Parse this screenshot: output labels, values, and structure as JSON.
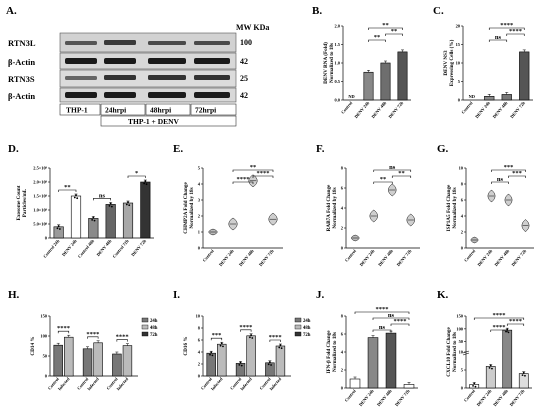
{
  "panel_letters": [
    "A.",
    "B.",
    "C.",
    "D.",
    "E.",
    "F.",
    "G.",
    "H.",
    "I.",
    "J.",
    "K."
  ],
  "western": {
    "mw_header": "MW KDa",
    "blots": [
      {
        "label": "RTN3L",
        "mw": "100"
      },
      {
        "label": "β-Actin",
        "mw": "42"
      },
      {
        "label": "RTN3S",
        "mw": "25"
      },
      {
        "label": "β-Actin",
        "mw": "42"
      }
    ],
    "lanes": [
      "THP-1",
      "24hrpi",
      "48hrpi",
      "72hrpi"
    ],
    "group_label": "THP-1 + DENV"
  },
  "chart_data": [
    {
      "id": "B",
      "type": "bar",
      "ylabel": "DENV RNA (Fold)\nNormalized to 18s",
      "categories": [
        "Control",
        "DENV 24h",
        "DENV 48h",
        "DENV 72h"
      ],
      "values": [
        0,
        0.75,
        1.0,
        1.3
      ],
      "ylim": [
        0,
        2.0
      ],
      "yticks": [
        "0.0",
        "0.5",
        "1.0",
        "1.5",
        "2.0"
      ],
      "annotations": {
        "nd": "ND"
      },
      "sig": [
        {
          "a": 1,
          "b": 2,
          "t": "**"
        },
        {
          "a": 2,
          "b": 3,
          "t": "**"
        },
        {
          "a": 1,
          "b": 3,
          "t": "**"
        }
      ]
    },
    {
      "id": "C",
      "type": "bar",
      "ylabel": "DENV NS3\nExpressing Cells (%)",
      "categories": [
        "Control",
        "DENV 24h",
        "DENV 48h",
        "DENV 72h"
      ],
      "values": [
        0,
        1.0,
        1.5,
        13
      ],
      "ylim": [
        0,
        20
      ],
      "yticks": [
        "0",
        "5",
        "10",
        "15",
        "20"
      ],
      "annotations": {
        "nd": "ND"
      },
      "sig": [
        {
          "a": 1,
          "b": 2,
          "t": "ns"
        },
        {
          "a": 2,
          "b": 3,
          "t": "****"
        },
        {
          "a": 1,
          "b": 3,
          "t": "****"
        }
      ]
    },
    {
      "id": "D",
      "type": "bar",
      "ylabel": "Exosome Count\nParticles/mL",
      "categories": [
        "Control 24h",
        "DENV 24h",
        "Control 48h",
        "DENV 48h",
        "Control 72h",
        "DENV 72h"
      ],
      "values": [
        0.4,
        1.5,
        0.7,
        1.2,
        1.25,
        2.0
      ],
      "ylim": [
        0,
        2.5
      ],
      "yticks": [
        "0",
        "5.0×10⁸",
        "1.0×10⁹",
        "1.5×10⁹",
        "2.0×10⁹",
        "2.5×10⁹"
      ],
      "sig": [
        {
          "a": 0,
          "b": 1,
          "t": "**"
        },
        {
          "a": 2,
          "b": 3,
          "t": "ns"
        },
        {
          "a": 4,
          "b": 5,
          "t": "*"
        }
      ]
    },
    {
      "id": "E",
      "type": "violin",
      "ylabel": "CHMP2A Fold Change\nNormalized by 18s",
      "categories": [
        "Control",
        "DENV 24h",
        "DENV 48h",
        "DENV 72h"
      ],
      "values": [
        1.0,
        1.5,
        4.2,
        1.8
      ],
      "ylim": [
        0,
        5
      ],
      "yticks": [
        "0",
        "1",
        "2",
        "3",
        "4",
        "5"
      ],
      "sig": [
        {
          "a": 1,
          "b": 2,
          "t": "****"
        },
        {
          "a": 2,
          "b": 3,
          "t": "****"
        },
        {
          "a": 1,
          "b": 3,
          "t": "**"
        }
      ]
    },
    {
      "id": "F",
      "type": "violin",
      "ylabel": "RAB7A Fold Change\nNormalized by 18s",
      "categories": [
        "Control",
        "DENV 24h",
        "DENV 48h",
        "DENV 72h"
      ],
      "values": [
        1.0,
        3.2,
        5.8,
        2.8
      ],
      "ylim": [
        0,
        8
      ],
      "yticks": [
        "0",
        "2",
        "4",
        "6",
        "8"
      ],
      "sig": [
        {
          "a": 1,
          "b": 2,
          "t": "**"
        },
        {
          "a": 2,
          "b": 3,
          "t": "**"
        },
        {
          "a": 1,
          "b": 3,
          "t": "ns"
        }
      ]
    },
    {
      "id": "G",
      "type": "violin",
      "ylabel": "ISP1A5 Fold Change\nNormalized by 18s",
      "categories": [
        "Control",
        "DENV 24h",
        "DENV 48h",
        "DENV 72h"
      ],
      "values": [
        1.0,
        6.5,
        6.0,
        2.8
      ],
      "ylim": [
        0,
        10
      ],
      "yticks": [
        "0",
        "2",
        "4",
        "6",
        "8",
        "10"
      ],
      "sig": [
        {
          "a": 1,
          "b": 2,
          "t": "ns"
        },
        {
          "a": 2,
          "b": 3,
          "t": "***"
        },
        {
          "a": 1,
          "b": 3,
          "t": "***"
        }
      ]
    },
    {
      "id": "H",
      "type": "bar",
      "ylabel": "CD14 %",
      "categories": [
        "Control",
        "Infected",
        "Control",
        "Infected",
        "Control",
        "Infected"
      ],
      "groups": [
        "24h",
        "48h",
        "72h"
      ],
      "values": [
        77,
        97,
        68,
        83,
        55,
        76
      ],
      "ylim": [
        0,
        150
      ],
      "yticks": [
        "0",
        "50",
        "100",
        "150"
      ],
      "legend": [
        "24h",
        "48h",
        "72h"
      ],
      "sig": [
        {
          "a": 0,
          "b": 1,
          "t": "****"
        },
        {
          "a": 2,
          "b": 3,
          "t": "****"
        },
        {
          "a": 4,
          "b": 5,
          "t": "****"
        }
      ]
    },
    {
      "id": "I",
      "type": "bar",
      "ylabel": "CD16 %",
      "categories": [
        "Control",
        "Infected",
        "Control",
        "Infected",
        "Control",
        "Infected"
      ],
      "groups": [
        "24h",
        "48h",
        "72h"
      ],
      "values": [
        3.8,
        5.3,
        2.1,
        6.7,
        2.2,
        5.0
      ],
      "ylim": [
        0,
        10
      ],
      "yticks": [
        "0",
        "2",
        "4",
        "6",
        "8",
        "10"
      ],
      "legend": [
        "24h",
        "48h",
        "72h"
      ],
      "sig": [
        {
          "a": 0,
          "b": 1,
          "t": "***"
        },
        {
          "a": 2,
          "b": 3,
          "t": "****"
        },
        {
          "a": 4,
          "b": 5,
          "t": "****"
        }
      ]
    },
    {
      "id": "J",
      "type": "bar",
      "ylabel": "IFN-β Fold Change\nNormalized to 18s",
      "categories": [
        "Control",
        "DENV 24h",
        "DENV 48h",
        "DENV 72h"
      ],
      "values": [
        1.0,
        5.6,
        6.1,
        0.4
      ],
      "ylim": [
        0,
        8
      ],
      "yticks": [
        "0",
        "2",
        "4",
        "6",
        "8"
      ],
      "sig": [
        {
          "a": 1,
          "b": 2,
          "t": "ns"
        },
        {
          "a": 2,
          "b": 3,
          "t": "****"
        },
        {
          "a": 1,
          "b": 3,
          "t": "ns"
        },
        {
          "a": 0,
          "b": 3,
          "t": "****"
        }
      ]
    },
    {
      "id": "K",
      "type": "bar",
      "ylabel": "CXCL10 Fold Change\nNormalized to 18s",
      "categories": [
        "Control",
        "DENV 24h",
        "DENV 48h",
        "DENV 72h"
      ],
      "values": [
        1.0,
        6.0,
        95,
        4.0
      ],
      "ylim": [
        0,
        150
      ],
      "yticks": [
        "0",
        "5",
        "10",
        "50",
        "100",
        "150"
      ],
      "axis_break": true,
      "sig": [
        {
          "a": 1,
          "b": 2,
          "t": "****"
        },
        {
          "a": 2,
          "b": 3,
          "t": "****"
        },
        {
          "a": 0,
          "b": 3,
          "t": "****"
        }
      ]
    }
  ]
}
